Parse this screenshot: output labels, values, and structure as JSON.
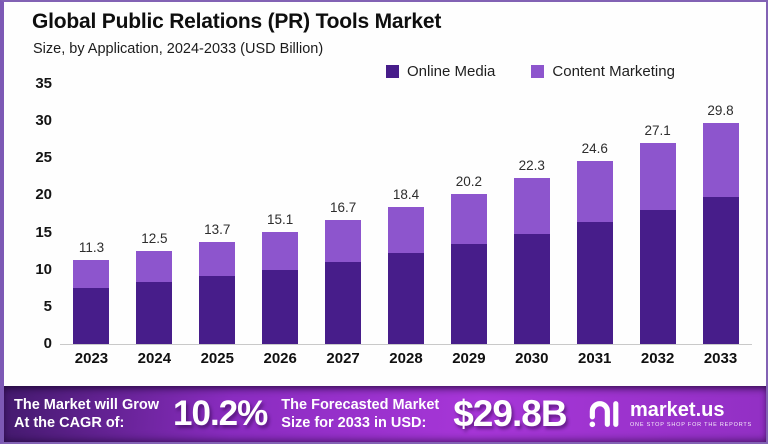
{
  "header": {
    "title": "Global Public Relations (PR) Tools Market",
    "subtitle": "Size, by Application, 2024-2033 (USD Billion)"
  },
  "chart_data": {
    "type": "bar",
    "stacked": true,
    "title": "Global Public Relations (PR) Tools Market",
    "subtitle": "Size, by Application, 2024-2033 (USD Billion)",
    "categories": [
      "2023",
      "2024",
      "2025",
      "2026",
      "2027",
      "2028",
      "2029",
      "2030",
      "2031",
      "2032",
      "2033"
    ],
    "series": [
      {
        "name": "Online Media",
        "color": "#471d8a",
        "values": [
          7.5,
          8.3,
          9.1,
          10.0,
          11.1,
          12.2,
          13.4,
          14.8,
          16.4,
          18.0,
          19.8
        ]
      },
      {
        "name": "Content Marketing",
        "color": "#8d55cd",
        "values": [
          3.8,
          4.2,
          4.6,
          5.1,
          5.6,
          6.2,
          6.8,
          7.5,
          8.2,
          9.1,
          10.0
        ]
      }
    ],
    "total_labels": [
      "11.3",
      "12.5",
      "13.7",
      "15.1",
      "16.7",
      "18.4",
      "20.2",
      "22.3",
      "24.6",
      "27.1",
      "29.8"
    ],
    "xlabel": "",
    "ylabel": "",
    "ylim": [
      0,
      35
    ],
    "yticks": [
      0,
      5,
      10,
      15,
      20,
      25,
      30,
      35
    ],
    "legend_position": "top-right",
    "grid": false
  },
  "banner": {
    "cagr_label_line1": "The Market will Grow",
    "cagr_label_line2": "At the CAGR of:",
    "cagr_value": "10.2%",
    "forecast_label_line1": "The Forecasted Market",
    "forecast_label_line2": "Size for 2033 in USD:",
    "forecast_value": "$29.8B",
    "brand_name": "market.us",
    "brand_tagline": "ONE STOP SHOP FOR THE REPORTS"
  },
  "colors": {
    "online_media": "#471d8a",
    "content_marketing": "#8d55cd",
    "banner_gradient_start": "#441a6e",
    "banner_gradient_end": "#a736d8",
    "frame_border": "#7d59b5"
  }
}
